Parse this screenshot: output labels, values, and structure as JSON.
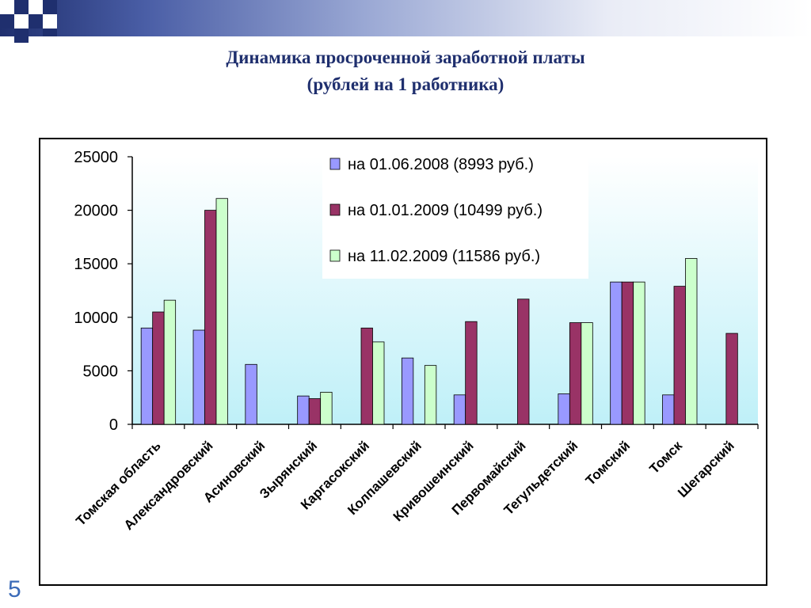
{
  "slide": {
    "title_line1": "Динамика просроченной заработной платы",
    "title_line2": "(рублей на 1 работника)",
    "page_number": "5"
  },
  "colors": {
    "band_dark": "#1f2f6e",
    "title": "#1f2f6e",
    "page_number": "#3a6ab8",
    "plot_bg_top": "#ffffff",
    "plot_bg_bottom": "#bff0f8"
  },
  "chart_data": {
    "type": "bar",
    "title": "",
    "xlabel": "",
    "ylabel": "",
    "ylim": [
      0,
      25000
    ],
    "yticks": [
      0,
      5000,
      10000,
      15000,
      20000,
      25000
    ],
    "grid": false,
    "legend_position": "top-right",
    "categories": [
      "Томская область",
      "Александровский",
      "Асиновский",
      "Зырянский",
      "Каргасокский",
      "Колпашевский",
      "Кривошеинский",
      "Первомайский",
      "Тегульдетский",
      "Томский",
      "Томск",
      "Шегарский"
    ],
    "series": [
      {
        "name": "на 01.06.2008 (8993 руб.)",
        "color": "#9999ff",
        "values": [
          9000,
          8800,
          5600,
          2650,
          0,
          6200,
          2750,
          0,
          2850,
          13300,
          2750,
          0
        ]
      },
      {
        "name": "на 01.01.2009 (10499 руб.)",
        "color": "#993366",
        "values": [
          10500,
          20000,
          0,
          2400,
          9000,
          0,
          9600,
          11700,
          9500,
          13300,
          12900,
          8500
        ]
      },
      {
        "name": "на 11.02.2009 (11586 руб.)",
        "color": "#ccffcc",
        "values": [
          11600,
          21100,
          0,
          3000,
          7700,
          5500,
          0,
          0,
          9500,
          13300,
          15500,
          0
        ]
      }
    ]
  }
}
